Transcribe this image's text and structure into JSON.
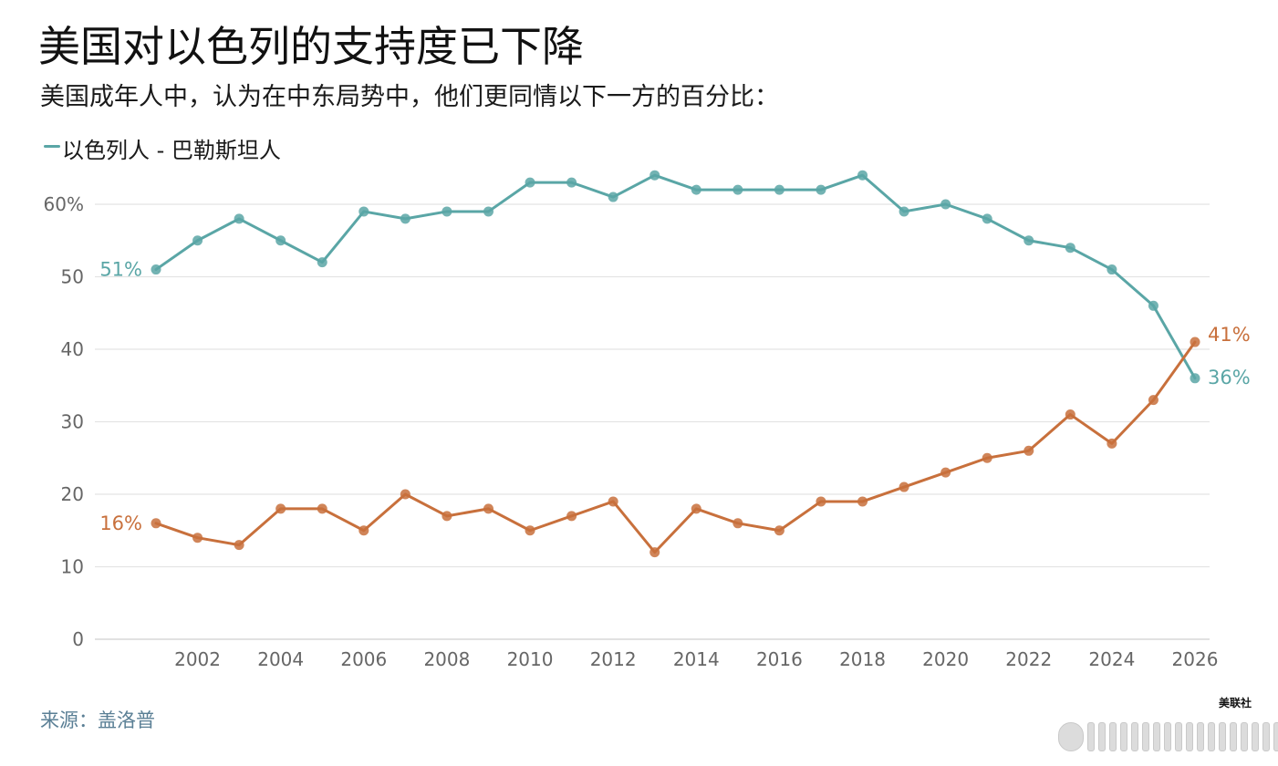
{
  "header": {
    "title": "美国对以色列的支持度已下降",
    "subtitle": "美国成年人中，认为在中东局势中，他们更同情以下一方的百分比："
  },
  "legend": {
    "label": "以色列人 - 巴勒斯坦人"
  },
  "source": "来源：盖洛普",
  "watermark": "美联社",
  "colors": {
    "israeli": "#5aa6a6",
    "palestinian": "#c8703c",
    "grid": "#e4e4e4",
    "axis_text": "#666666"
  },
  "chart_data": {
    "type": "line",
    "title": "美国对以色列的支持度已下降",
    "subtitle": "美国成年人中，认为在中东局势中，他们更同情以下一方的百分比：",
    "x": [
      2001,
      2002,
      2003,
      2004,
      2005,
      2006,
      2007,
      2008,
      2009,
      2010,
      2011,
      2012,
      2013,
      2014,
      2015,
      2016,
      2017,
      2018,
      2019,
      2020,
      2021,
      2022,
      2023,
      2024,
      2025,
      2026
    ],
    "series": [
      {
        "key": "israeli",
        "values": [
          51,
          55,
          58,
          55,
          52,
          59,
          58,
          59,
          59,
          63,
          63,
          61,
          64,
          62,
          62,
          62,
          62,
          64,
          59,
          60,
          58,
          55,
          54,
          51,
          46,
          36
        ],
        "start_label": "51%",
        "end_label": "36%"
      },
      {
        "key": "palestinian",
        "values": [
          16,
          14,
          13,
          18,
          18,
          15,
          20,
          17,
          18,
          15,
          17,
          19,
          12,
          18,
          16,
          15,
          19,
          19,
          21,
          23,
          25,
          26,
          31,
          27,
          33,
          41
        ],
        "start_label": "16%",
        "end_label": "41%"
      }
    ],
    "x_ticks": [
      2002,
      2004,
      2006,
      2008,
      2010,
      2012,
      2014,
      2016,
      2018,
      2020,
      2022,
      2024,
      2026
    ],
    "y_ticks": [
      {
        "value": 0,
        "label": "0"
      },
      {
        "value": 10,
        "label": "10"
      },
      {
        "value": 20,
        "label": "20"
      },
      {
        "value": 30,
        "label": "30"
      },
      {
        "value": 40,
        "label": "40"
      },
      {
        "value": 50,
        "label": "50"
      },
      {
        "value": 60,
        "label": "60%"
      }
    ],
    "xlim": [
      2000.1,
      2026.4
    ],
    "ylim": [
      0,
      64
    ],
    "grid": true,
    "legend_position": "top-left"
  }
}
